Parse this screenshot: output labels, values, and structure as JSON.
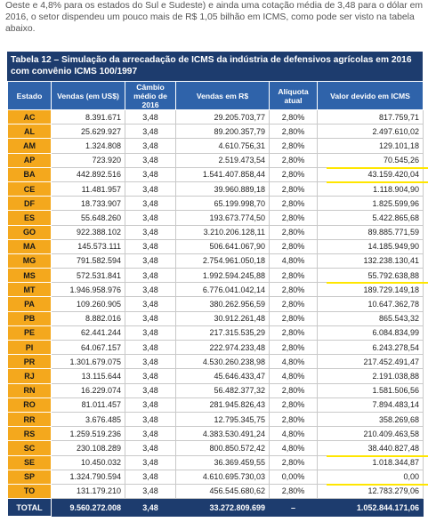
{
  "intro": "Oeste e 4,8% para os estados do Sul e Sudeste) e ainda uma cotação média de 3,48 para o dólar em 2016, o setor dispendeu um pouco mais de R$ 1,05 bilhão em ICMS, como pode ser visto na tabela abaixo.",
  "table": {
    "title": "Tabela 12 – Simulação da arrecadação de ICMS da indústria de defensivos agrícolas em 2016 com convênio ICMS 100/1997",
    "headers": [
      "Estado",
      "Vendas (em US$)",
      "Câmbio médio de 2016",
      "Vendas em R$",
      "Alíquota atual",
      "Valor devido em ICMS"
    ],
    "rows": [
      [
        "AC",
        "8.391.671",
        "3,48",
        "29.205.703,77",
        "2,80%",
        "817.759,71"
      ],
      [
        "AL",
        "25.629.927",
        "3,48",
        "89.200.357,79",
        "2,80%",
        "2.497.610,02"
      ],
      [
        "AM",
        "1.324.808",
        "3,48",
        "4.610.756,31",
        "2,80%",
        "129.101,18"
      ],
      [
        "AP",
        "723.920",
        "3,48",
        "2.519.473,54",
        "2,80%",
        "70.545,26"
      ],
      [
        "BA",
        "442.892.516",
        "3,48",
        "1.541.407.858,44",
        "2,80%",
        "43.159.420,04"
      ],
      [
        "CE",
        "11.481.957",
        "3,48",
        "39.960.889,18",
        "2,80%",
        "1.118.904,90"
      ],
      [
        "DF",
        "18.733.907",
        "3,48",
        "65.199.998,70",
        "2,80%",
        "1.825.599,96"
      ],
      [
        "ES",
        "55.648.260",
        "3,48",
        "193.673.774,50",
        "2,80%",
        "5.422.865,68"
      ],
      [
        "GO",
        "922.388.102",
        "3,48",
        "3.210.206.128,11",
        "2,80%",
        "89.885.771,59"
      ],
      [
        "MA",
        "145.573.111",
        "3,48",
        "506.641.067,90",
        "2,80%",
        "14.185.949,90"
      ],
      [
        "MG",
        "791.582.594",
        "3,48",
        "2.754.961.050,18",
        "4,80%",
        "132.238.130,41"
      ],
      [
        "MS",
        "572.531.841",
        "3,48",
        "1.992.594.245,88",
        "2,80%",
        "55.792.638,88"
      ],
      [
        "MT",
        "1.946.958.976",
        "3,48",
        "6.776.041.042,14",
        "2,80%",
        "189.729.149,18"
      ],
      [
        "PA",
        "109.260.905",
        "3,48",
        "380.262.956,59",
        "2,80%",
        "10.647.362,78"
      ],
      [
        "PB",
        "8.882.016",
        "3,48",
        "30.912.261,48",
        "2,80%",
        "865.543,32"
      ],
      [
        "PE",
        "62.441.244",
        "3,48",
        "217.315.535,29",
        "2,80%",
        "6.084.834,99"
      ],
      [
        "PI",
        "64.067.157",
        "3,48",
        "222.974.233,48",
        "2,80%",
        "6.243.278,54"
      ],
      [
        "PR",
        "1.301.679.075",
        "3,48",
        "4.530.260.238,98",
        "4,80%",
        "217.452.491,47"
      ],
      [
        "RJ",
        "13.115.644",
        "3,48",
        "45.646.433,47",
        "4,80%",
        "2.191.038,88"
      ],
      [
        "RN",
        "16.229.074",
        "3,48",
        "56.482.377,32",
        "2,80%",
        "1.581.506,56"
      ],
      [
        "RO",
        "81.011.457",
        "3,48",
        "281.945.826,43",
        "2,80%",
        "7.894.483,14"
      ],
      [
        "RR",
        "3.676.485",
        "3,48",
        "12.795.345,75",
        "2,80%",
        "358.269,68"
      ],
      [
        "RS",
        "1.259.519.236",
        "3,48",
        "4.383.530.491,24",
        "4,80%",
        "210.409.463,58"
      ],
      [
        "SC",
        "230.108.289",
        "3,48",
        "800.850.572,42",
        "4,80%",
        "38.440.827,48"
      ],
      [
        "SE",
        "10.450.032",
        "3,48",
        "36.369.459,55",
        "2,80%",
        "1.018.344,87"
      ],
      [
        "SP",
        "1.324.790.594",
        "3,48",
        "4.610.695.730,03",
        "0,00%",
        "0,00"
      ],
      [
        "TO",
        "131.179.210",
        "3,48",
        "456.545.680,62",
        "2,80%",
        "12.783.279,06"
      ]
    ],
    "total": [
      "TOTAL",
      "9.560.272.008",
      "3,48",
      "33.272.809.699",
      "–",
      "1.052.844.171,06"
    ]
  }
}
